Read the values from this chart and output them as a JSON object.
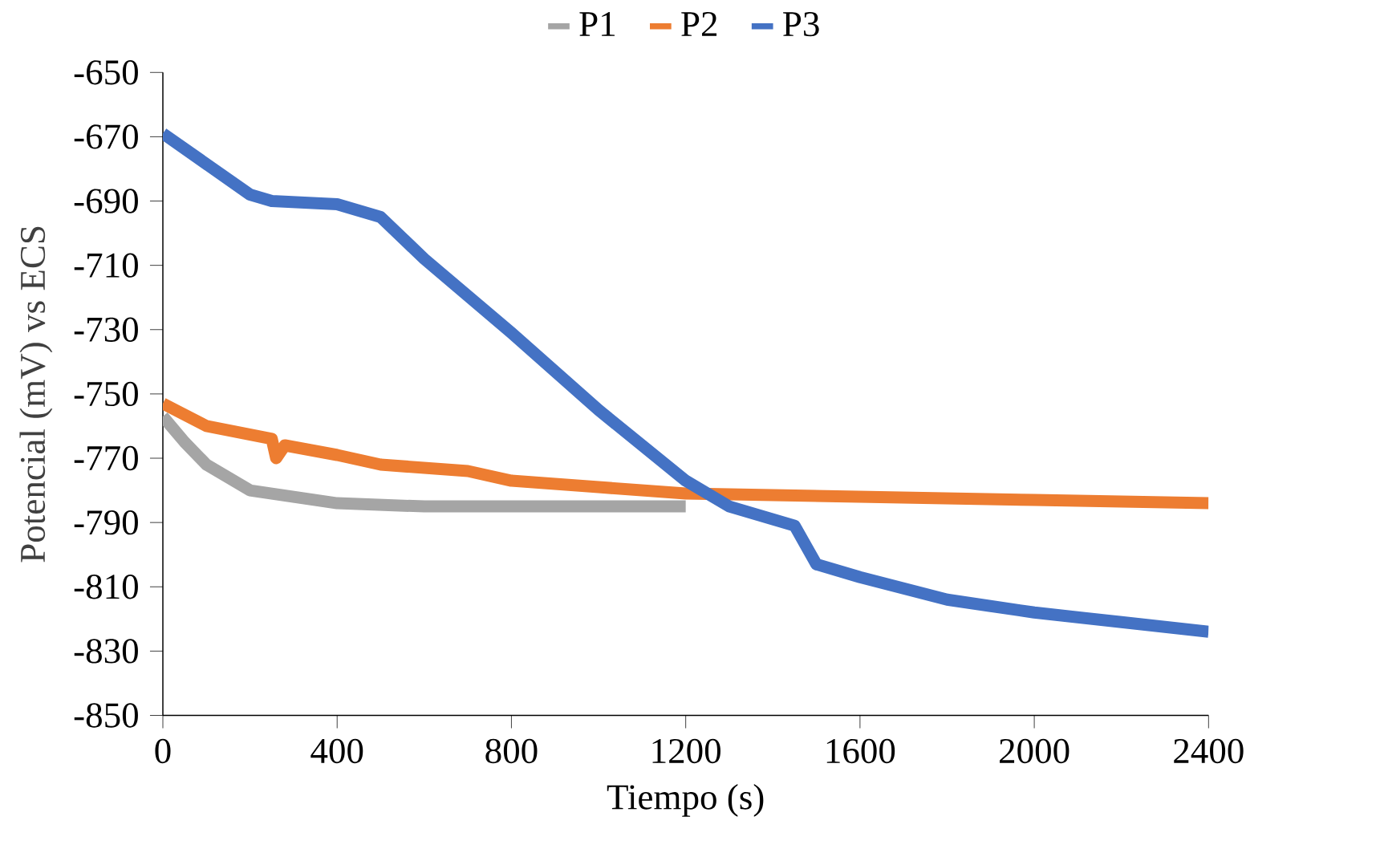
{
  "chart_data": {
    "type": "line",
    "xlabel": "Tiempo  (s)",
    "ylabel": "Potencial (mV)  vs ECS",
    "xlim": [
      0,
      2400
    ],
    "xticks": [
      0,
      400,
      800,
      1200,
      1600,
      2000,
      2400
    ],
    "ylim": [
      -850,
      -650
    ],
    "yticks": [
      -850,
      -830,
      -810,
      -790,
      -770,
      -750,
      -730,
      -710,
      -690,
      -670,
      -650
    ],
    "grid": false,
    "legend": "top",
    "marker": "none",
    "line_style": "solid",
    "series": [
      {
        "name": "P1",
        "color": "#a5a5a5",
        "x": [
          0,
          50,
          100,
          200,
          300,
          400,
          600,
          800,
          1000,
          1200
        ],
        "values": [
          -757,
          -765,
          -772,
          -780,
          -782,
          -784,
          -785,
          -785,
          -785,
          -785
        ]
      },
      {
        "name": "P2",
        "color": "#ed7d31",
        "x": [
          0,
          100,
          250,
          260,
          280,
          400,
          500,
          700,
          800,
          1000,
          1200,
          1600,
          2000,
          2400
        ],
        "values": [
          -753,
          -760,
          -764,
          -770,
          -766,
          -769,
          -772,
          -774,
          -777,
          -779,
          -781,
          -782,
          -783,
          -784
        ]
      },
      {
        "name": "P3",
        "color": "#4472c4",
        "x": [
          0,
          200,
          250,
          400,
          450,
          500,
          600,
          800,
          1000,
          1200,
          1300,
          1400,
          1450,
          1500,
          1600,
          1800,
          2000,
          2200,
          2400
        ],
        "values": [
          -669,
          -688,
          -690,
          -691,
          -693,
          -695,
          -708,
          -731,
          -755,
          -777,
          -785,
          -789,
          -791,
          -803,
          -807,
          -814,
          -818,
          -821,
          -824
        ]
      }
    ]
  }
}
